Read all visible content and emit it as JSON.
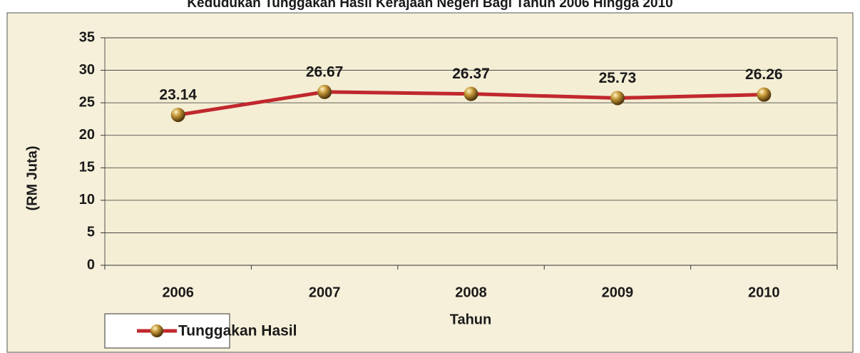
{
  "chart_data": {
    "type": "line",
    "title": "Kedudukan Tunggakan Hasil Kerajaan Negeri Bagi Tahun 2006 Hingga 2010",
    "x_label": "Tahun",
    "y_label": "(RM Juta)",
    "categories": [
      "2006",
      "2007",
      "2008",
      "2009",
      "2010"
    ],
    "series": [
      {
        "name": "Tunggakan Hasil",
        "color": "#c0282d",
        "values": [
          23.14,
          26.67,
          26.37,
          25.73,
          26.26
        ]
      }
    ],
    "ylim": [
      0,
      35
    ],
    "yticks": [
      0,
      5,
      10,
      15,
      20,
      25,
      30,
      35
    ],
    "grid": true,
    "legend": "bottom-left"
  }
}
